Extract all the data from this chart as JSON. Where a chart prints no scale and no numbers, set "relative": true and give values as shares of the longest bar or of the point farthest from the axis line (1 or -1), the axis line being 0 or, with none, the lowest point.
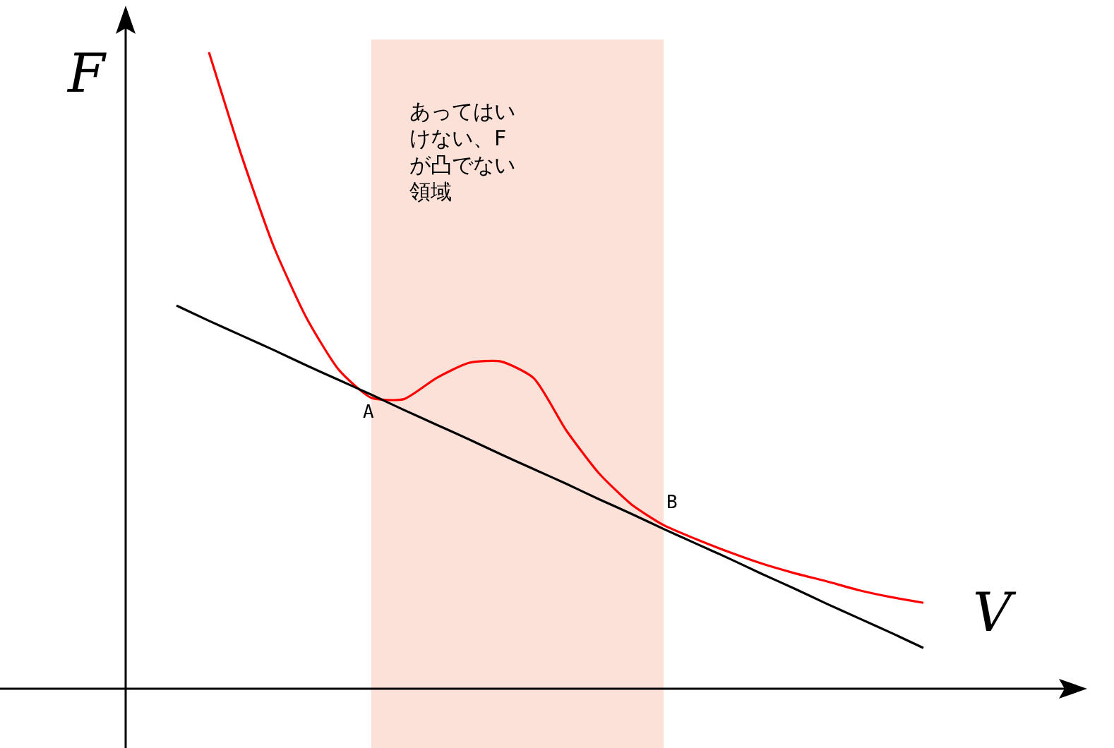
{
  "chart_data": {
    "type": "line",
    "relative": true,
    "xlabel": "V",
    "ylabel": "F",
    "categories": [
      null,
      null,
      null,
      null,
      null,
      null,
      null,
      null,
      null,
      null,
      null,
      null,
      null,
      null,
      null,
      null,
      null,
      null,
      null,
      null,
      null,
      null,
      null,
      null
    ],
    "series": [
      {
        "color": "#ff0000",
        "values": [
          null,
          1.0,
          0.838,
          0.694,
          0.583,
          0.501,
          0.457,
          0.455,
          0.488,
          0.512,
          0.514,
          0.488,
          0.406,
          0.339,
          0.29,
          0.257,
          0.235,
          0.215,
          0.197,
          0.182,
          0.169,
          0.155,
          0.144,
          0.135
        ]
      },
      {
        "color": "#000000",
        "values": [
          0.602,
          0.578,
          0.555,
          0.532,
          0.508,
          0.485,
          0.462,
          0.438,
          0.415,
          0.392,
          0.368,
          0.345,
          0.322,
          0.298,
          0.275,
          0.251,
          0.228,
          0.205,
          0.181,
          0.158,
          0.134,
          0.111,
          0.088,
          0.064
        ]
      }
    ],
    "annotations": [
      "あってはいけない、Fが凸でない領域",
      "A",
      "B"
    ],
    "grid": false,
    "marker": "none",
    "line_style": "solid"
  }
}
